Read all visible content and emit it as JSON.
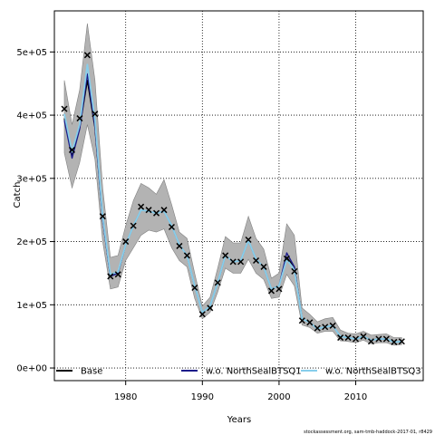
{
  "chart_data": {
    "type": "line",
    "title": "",
    "xlabel": "Years",
    "ylabel": "Catch",
    "xlim": [
      1970.7,
      2018.8
    ],
    "ylim": [
      -20000,
      565000
    ],
    "x_ticks": [
      1980,
      1990,
      2000,
      2010
    ],
    "x_tick_labels": [
      "1980",
      "1990",
      "2000",
      "2010"
    ],
    "y_ticks": [
      0,
      100000,
      200000,
      300000,
      400000,
      500000
    ],
    "y_tick_labels": [
      "0e+00",
      "1e+05",
      "2e+05",
      "3e+05",
      "4e+05",
      "5e+05"
    ],
    "grid": true,
    "legend_position": "bottom",
    "years": [
      1972,
      1973,
      1974,
      1975,
      1976,
      1977,
      1978,
      1979,
      1980,
      1981,
      1982,
      1983,
      1984,
      1985,
      1986,
      1987,
      1988,
      1989,
      1990,
      1991,
      1992,
      1993,
      1994,
      1995,
      1996,
      1997,
      1998,
      1999,
      2000,
      2001,
      2002,
      2003,
      2004,
      2005,
      2006,
      2007,
      2008,
      2009,
      2010,
      2011,
      2012,
      2013,
      2014,
      2015,
      2016
    ],
    "observed": [
      410000,
      345000,
      395000,
      495000,
      402000,
      240000,
      145000,
      148000,
      200000,
      225000,
      255000,
      250000,
      245000,
      250000,
      223000,
      193000,
      178000,
      127000,
      85000,
      95000,
      135000,
      178000,
      168000,
      168000,
      203000,
      170000,
      160000,
      122000,
      125000,
      173000,
      153000,
      75000,
      72000,
      63000,
      65000,
      67000,
      48000,
      48000,
      46000,
      50000,
      42000,
      46000,
      46000,
      41000,
      42000
    ],
    "series": [
      {
        "name": "Base",
        "color": "#000000",
        "values": [
          395000,
          335000,
          380000,
          455000,
          380000,
          235000,
          145000,
          150000,
          195000,
          225000,
          250000,
          248000,
          245000,
          248000,
          225000,
          195000,
          178000,
          130000,
          88000,
          98000,
          135000,
          178000,
          168000,
          170000,
          202000,
          172000,
          160000,
          125000,
          130000,
          175000,
          160000,
          78000,
          72000,
          62000,
          65000,
          67000,
          50000,
          48000,
          46000,
          50000,
          44000,
          46000,
          46000,
          41000,
          42000
        ]
      },
      {
        "name": "w.o. NorthSealBTSQ1",
        "color": "#1c1c8a",
        "values": [
          392000,
          332000,
          378000,
          465000,
          382000,
          235000,
          145000,
          150000,
          195000,
          225000,
          250000,
          248000,
          245000,
          248000,
          225000,
          195000,
          178000,
          130000,
          88000,
          98000,
          135000,
          178000,
          168000,
          170000,
          202000,
          172000,
          160000,
          125000,
          130000,
          182000,
          160000,
          78000,
          72000,
          62000,
          65000,
          67000,
          50000,
          48000,
          46000,
          50000,
          44000,
          46000,
          46000,
          41000,
          42000
        ]
      },
      {
        "name": "w.o. NorthSealBTSQ3",
        "color": "#87ceeb",
        "values": [
          402000,
          342000,
          385000,
          480000,
          392000,
          240000,
          148000,
          152000,
          195000,
          225000,
          250000,
          248000,
          245000,
          248000,
          225000,
          195000,
          178000,
          130000,
          88000,
          98000,
          135000,
          178000,
          168000,
          170000,
          202000,
          172000,
          160000,
          125000,
          130000,
          172000,
          155000,
          78000,
          72000,
          62000,
          65000,
          67000,
          50000,
          48000,
          46000,
          50000,
          44000,
          46000,
          46000,
          41000,
          42000
        ]
      }
    ],
    "band_lower": [
      340000,
      285000,
      325000,
      385000,
      330000,
      200000,
      125000,
      128000,
      170000,
      190000,
      210000,
      218000,
      215000,
      220000,
      190000,
      170000,
      160000,
      110000,
      78000,
      88000,
      120000,
      158000,
      150000,
      150000,
      172000,
      150000,
      140000,
      110000,
      112000,
      148000,
      130000,
      68000,
      64000,
      55000,
      58000,
      58000,
      43000,
      42000,
      40000,
      44000,
      38000,
      40000,
      40000,
      36000,
      37000
    ],
    "band_upper": [
      455000,
      385000,
      440000,
      545000,
      455000,
      285000,
      175000,
      178000,
      225000,
      265000,
      292000,
      285000,
      275000,
      298000,
      258000,
      215000,
      205000,
      150000,
      98000,
      112000,
      158000,
      208000,
      198000,
      198000,
      240000,
      205000,
      188000,
      142000,
      150000,
      228000,
      210000,
      95000,
      85000,
      73000,
      78000,
      80000,
      60000,
      55000,
      54000,
      58000,
      52000,
      53000,
      54000,
      48000,
      48000
    ],
    "footnote": "stockassessment.org, sam-tmb-haddock-2017-01, r8429"
  }
}
